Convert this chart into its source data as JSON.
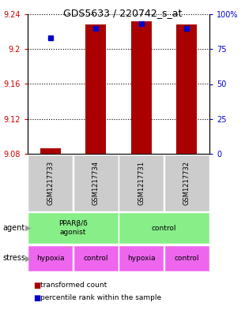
{
  "title": "GDS5633 / 220742_s_at",
  "samples": [
    "GSM1217733",
    "GSM1217734",
    "GSM1217731",
    "GSM1217732"
  ],
  "bar_values": [
    9.086,
    9.228,
    9.232,
    9.228
  ],
  "bar_bottom": 9.08,
  "percentile_values": [
    83,
    90,
    93,
    90
  ],
  "ylim_left": [
    9.08,
    9.24
  ],
  "ylim_right": [
    0,
    100
  ],
  "yticks_left": [
    9.08,
    9.12,
    9.16,
    9.2,
    9.24
  ],
  "ytick_labels_left": [
    "9.08",
    "9.12",
    "9.16",
    "9.2",
    "9.24"
  ],
  "yticks_right": [
    0,
    25,
    50,
    75,
    100
  ],
  "ytick_labels_right": [
    "0",
    "25",
    "50",
    "75",
    "100%"
  ],
  "bar_color": "#aa0000",
  "percentile_color": "#0000cc",
  "bar_width": 0.45,
  "agent_labels": [
    "PPARβ/δ\nagonist",
    "control"
  ],
  "agent_color": "#88ee88",
  "stress_labels": [
    "hypoxia",
    "control",
    "hypoxia",
    "control"
  ],
  "stress_color": "#ee66ee",
  "sample_box_color": "#cccccc",
  "legend_red_label": "transformed count",
  "legend_blue_label": "percentile rank within the sample"
}
